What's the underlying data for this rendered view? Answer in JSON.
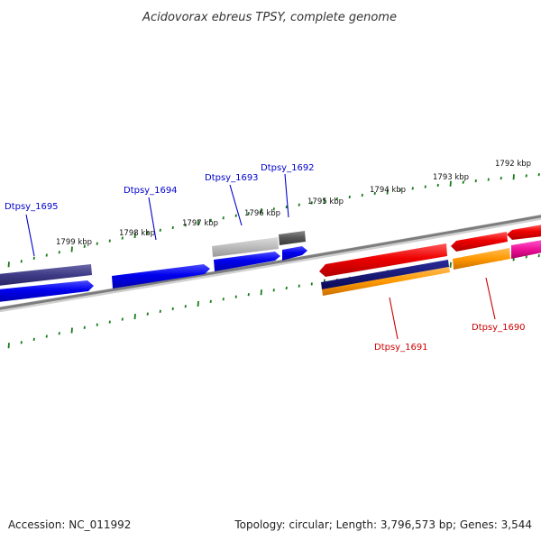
{
  "title": "Acidovorax ebreus TPSY, complete genome",
  "footer": {
    "accession": "Accession: NC_011992",
    "summary": "Topology: circular; Length: 3,796,573 bp; Genes: 3,544"
  },
  "ruler_labels": [
    "1799 kbp",
    "1798 kbp",
    "1797 kbp",
    "1796 kbp",
    "1795 kbp",
    "1794 kbp",
    "1793 kbp",
    "1792 kbp"
  ],
  "gene_labels": {
    "blue": [
      "Dtpsy_1695",
      "Dtpsy_1694",
      "Dtpsy_1693",
      "Dtpsy_1692"
    ],
    "red": [
      "Dtpsy_1691",
      "Dtpsy_1690"
    ]
  },
  "colors": {
    "backbone": "#808080",
    "tick": "#1a7a1a",
    "forward_gene": "#0000ee",
    "reverse_gene": "#ee0000",
    "label_blue": "#0000cc",
    "label_red": "#cc0000"
  }
}
